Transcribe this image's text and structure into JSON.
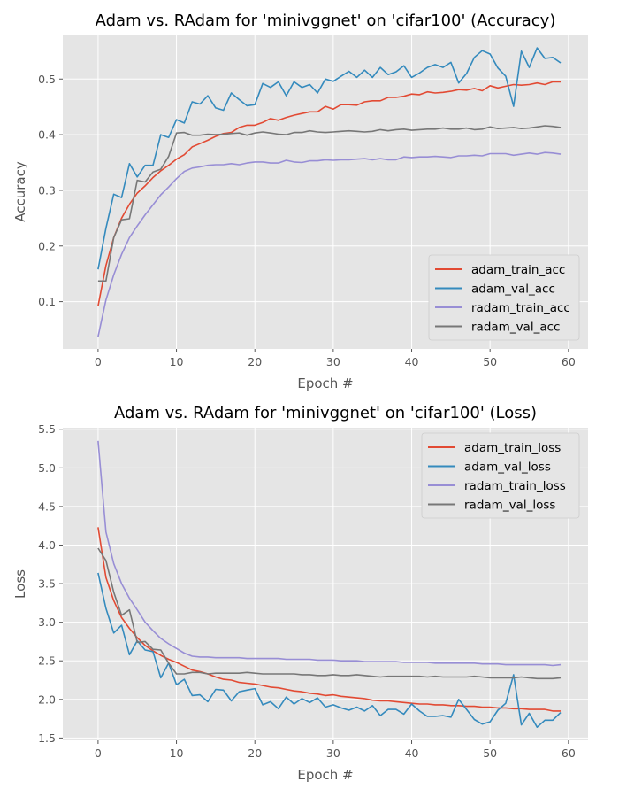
{
  "chart_data": [
    {
      "type": "line",
      "title": "Adam vs. RAdam for 'minivggnet' on 'cifar100' (Accuracy)",
      "xlabel": "Epoch #",
      "ylabel": "Accuracy",
      "xlim": [
        -4.5,
        62.5
      ],
      "ylim": [
        0.015,
        0.58
      ],
      "xticks": [
        0,
        10,
        20,
        30,
        40,
        50,
        60
      ],
      "xtick_labels": [
        "0",
        "10",
        "20",
        "30",
        "40",
        "50",
        "60"
      ],
      "yticks": [
        0.1,
        0.2,
        0.3,
        0.4,
        0.5
      ],
      "ytick_labels": [
        "0.1",
        "0.2",
        "0.3",
        "0.4",
        "0.5"
      ],
      "grid": true,
      "legend_position": "lower-right",
      "x": [
        0,
        1,
        2,
        3,
        4,
        5,
        6,
        7,
        8,
        9,
        10,
        11,
        12,
        13,
        14,
        15,
        16,
        17,
        18,
        19,
        20,
        21,
        22,
        23,
        24,
        25,
        26,
        27,
        28,
        29,
        30,
        31,
        32,
        33,
        34,
        35,
        36,
        37,
        38,
        39,
        40,
        41,
        42,
        43,
        44,
        45,
        46,
        47,
        48,
        49,
        50,
        51,
        52,
        53,
        54,
        55,
        56,
        57,
        58,
        59
      ],
      "series": [
        {
          "name": "adam_train_acc",
          "color": "#E24A33",
          "values": [
            0.092,
            0.165,
            0.215,
            0.25,
            0.275,
            0.295,
            0.308,
            0.323,
            0.335,
            0.345,
            0.356,
            0.364,
            0.378,
            0.384,
            0.39,
            0.397,
            0.402,
            0.404,
            0.413,
            0.417,
            0.417,
            0.422,
            0.429,
            0.426,
            0.431,
            0.435,
            0.438,
            0.441,
            0.441,
            0.451,
            0.446,
            0.454,
            0.454,
            0.453,
            0.459,
            0.461,
            0.461,
            0.467,
            0.467,
            0.469,
            0.473,
            0.472,
            0.477,
            0.475,
            0.476,
            0.478,
            0.481,
            0.48,
            0.483,
            0.479,
            0.488,
            0.484,
            0.487,
            0.49,
            0.489,
            0.49,
            0.493,
            0.49,
            0.495,
            0.495
          ]
        },
        {
          "name": "adam_val_acc",
          "color": "#348ABD",
          "values": [
            0.158,
            0.232,
            0.293,
            0.287,
            0.348,
            0.324,
            0.345,
            0.345,
            0.4,
            0.395,
            0.427,
            0.421,
            0.459,
            0.455,
            0.47,
            0.448,
            0.444,
            0.475,
            0.463,
            0.452,
            0.454,
            0.492,
            0.485,
            0.495,
            0.47,
            0.495,
            0.485,
            0.49,
            0.475,
            0.5,
            0.496,
            0.505,
            0.514,
            0.503,
            0.516,
            0.503,
            0.521,
            0.508,
            0.513,
            0.524,
            0.503,
            0.511,
            0.521,
            0.526,
            0.521,
            0.53,
            0.493,
            0.51,
            0.539,
            0.551,
            0.545,
            0.52,
            0.505,
            0.451,
            0.55,
            0.521,
            0.556,
            0.537,
            0.539,
            0.529
          ]
        },
        {
          "name": "radam_train_acc",
          "color": "#988ED5",
          "values": [
            0.037,
            0.103,
            0.148,
            0.185,
            0.215,
            0.236,
            0.256,
            0.274,
            0.292,
            0.306,
            0.321,
            0.334,
            0.34,
            0.342,
            0.345,
            0.346,
            0.346,
            0.348,
            0.346,
            0.349,
            0.351,
            0.351,
            0.349,
            0.349,
            0.354,
            0.351,
            0.35,
            0.353,
            0.353,
            0.355,
            0.354,
            0.355,
            0.355,
            0.356,
            0.357,
            0.355,
            0.357,
            0.355,
            0.355,
            0.36,
            0.359,
            0.36,
            0.36,
            0.361,
            0.36,
            0.359,
            0.362,
            0.362,
            0.363,
            0.362,
            0.366,
            0.366,
            0.366,
            0.363,
            0.365,
            0.367,
            0.365,
            0.368,
            0.367,
            0.365
          ]
        },
        {
          "name": "radam_val_acc",
          "color": "#777777",
          "values": [
            0.137,
            0.137,
            0.215,
            0.247,
            0.249,
            0.318,
            0.315,
            0.333,
            0.338,
            0.361,
            0.403,
            0.404,
            0.399,
            0.399,
            0.401,
            0.4,
            0.401,
            0.402,
            0.403,
            0.399,
            0.403,
            0.405,
            0.403,
            0.401,
            0.4,
            0.404,
            0.404,
            0.407,
            0.405,
            0.404,
            0.405,
            0.406,
            0.407,
            0.406,
            0.405,
            0.406,
            0.409,
            0.407,
            0.409,
            0.41,
            0.408,
            0.409,
            0.41,
            0.41,
            0.412,
            0.41,
            0.41,
            0.412,
            0.409,
            0.41,
            0.414,
            0.411,
            0.412,
            0.413,
            0.411,
            0.412,
            0.414,
            0.416,
            0.415,
            0.413
          ]
        }
      ]
    },
    {
      "type": "line",
      "title": "Adam vs. RAdam for 'minivggnet' on 'cifar100' (Loss)",
      "xlabel": "Epoch #",
      "ylabel": "Loss",
      "xlim": [
        -4.5,
        62.5
      ],
      "ylim": [
        1.47,
        5.52
      ],
      "xticks": [
        0,
        10,
        20,
        30,
        40,
        50,
        60
      ],
      "xtick_labels": [
        "0",
        "10",
        "20",
        "30",
        "40",
        "50",
        "60"
      ],
      "yticks": [
        1.5,
        2.0,
        2.5,
        3.0,
        3.5,
        4.0,
        4.5,
        5.0,
        5.5
      ],
      "ytick_labels": [
        "1.5",
        "2.0",
        "2.5",
        "3.0",
        "3.5",
        "4.0",
        "4.5",
        "5.0",
        "5.5"
      ],
      "grid": true,
      "legend_position": "upper-right",
      "x": [
        0,
        1,
        2,
        3,
        4,
        5,
        6,
        7,
        8,
        9,
        10,
        11,
        12,
        13,
        14,
        15,
        16,
        17,
        18,
        19,
        20,
        21,
        22,
        23,
        24,
        25,
        26,
        27,
        28,
        29,
        30,
        31,
        32,
        33,
        34,
        35,
        36,
        37,
        38,
        39,
        40,
        41,
        42,
        43,
        44,
        45,
        46,
        47,
        48,
        49,
        50,
        51,
        52,
        53,
        54,
        55,
        56,
        57,
        58,
        59
      ],
      "series": [
        {
          "name": "adam_train_loss",
          "color": "#E24A33",
          "values": [
            4.23,
            3.58,
            3.28,
            3.06,
            2.92,
            2.8,
            2.7,
            2.63,
            2.57,
            2.52,
            2.48,
            2.43,
            2.38,
            2.36,
            2.33,
            2.29,
            2.26,
            2.25,
            2.22,
            2.21,
            2.2,
            2.18,
            2.16,
            2.15,
            2.13,
            2.11,
            2.1,
            2.08,
            2.07,
            2.05,
            2.06,
            2.04,
            2.03,
            2.02,
            2.01,
            1.99,
            1.98,
            1.98,
            1.97,
            1.96,
            1.95,
            1.94,
            1.94,
            1.93,
            1.93,
            1.92,
            1.92,
            1.91,
            1.91,
            1.9,
            1.9,
            1.89,
            1.89,
            1.88,
            1.88,
            1.87,
            1.87,
            1.87,
            1.85,
            1.85
          ]
        },
        {
          "name": "adam_val_loss",
          "color": "#348ABD",
          "values": [
            3.64,
            3.18,
            2.86,
            2.96,
            2.58,
            2.76,
            2.64,
            2.62,
            2.28,
            2.47,
            2.19,
            2.26,
            2.05,
            2.06,
            1.97,
            2.13,
            2.12,
            1.98,
            2.1,
            2.12,
            2.14,
            1.93,
            1.97,
            1.88,
            2.03,
            1.94,
            2.01,
            1.96,
            2.02,
            1.9,
            1.93,
            1.89,
            1.86,
            1.9,
            1.85,
            1.92,
            1.79,
            1.87,
            1.87,
            1.81,
            1.94,
            1.85,
            1.78,
            1.78,
            1.79,
            1.77,
            2.0,
            1.87,
            1.74,
            1.68,
            1.71,
            1.86,
            1.95,
            2.32,
            1.67,
            1.82,
            1.64,
            1.73,
            1.73,
            1.83
          ]
        },
        {
          "name": "radam_train_loss",
          "color": "#988ED5",
          "values": [
            5.35,
            4.17,
            3.76,
            3.5,
            3.31,
            3.16,
            3.0,
            2.89,
            2.79,
            2.72,
            2.66,
            2.6,
            2.56,
            2.55,
            2.55,
            2.54,
            2.54,
            2.54,
            2.54,
            2.53,
            2.53,
            2.53,
            2.53,
            2.53,
            2.52,
            2.52,
            2.52,
            2.52,
            2.51,
            2.51,
            2.51,
            2.5,
            2.5,
            2.5,
            2.49,
            2.49,
            2.49,
            2.49,
            2.49,
            2.48,
            2.48,
            2.48,
            2.48,
            2.47,
            2.47,
            2.47,
            2.47,
            2.47,
            2.47,
            2.46,
            2.46,
            2.46,
            2.45,
            2.45,
            2.45,
            2.45,
            2.45,
            2.45,
            2.44,
            2.45
          ]
        },
        {
          "name": "radam_val_loss",
          "color": "#777777",
          "values": [
            3.96,
            3.8,
            3.39,
            3.09,
            3.16,
            2.74,
            2.75,
            2.65,
            2.64,
            2.47,
            2.33,
            2.33,
            2.35,
            2.35,
            2.33,
            2.34,
            2.34,
            2.34,
            2.34,
            2.35,
            2.34,
            2.33,
            2.33,
            2.33,
            2.33,
            2.33,
            2.32,
            2.32,
            2.31,
            2.31,
            2.32,
            2.31,
            2.31,
            2.32,
            2.31,
            2.3,
            2.29,
            2.3,
            2.3,
            2.3,
            2.3,
            2.3,
            2.29,
            2.3,
            2.29,
            2.29,
            2.29,
            2.29,
            2.3,
            2.29,
            2.28,
            2.28,
            2.28,
            2.28,
            2.29,
            2.28,
            2.27,
            2.27,
            2.27,
            2.28
          ]
        }
      ]
    }
  ]
}
